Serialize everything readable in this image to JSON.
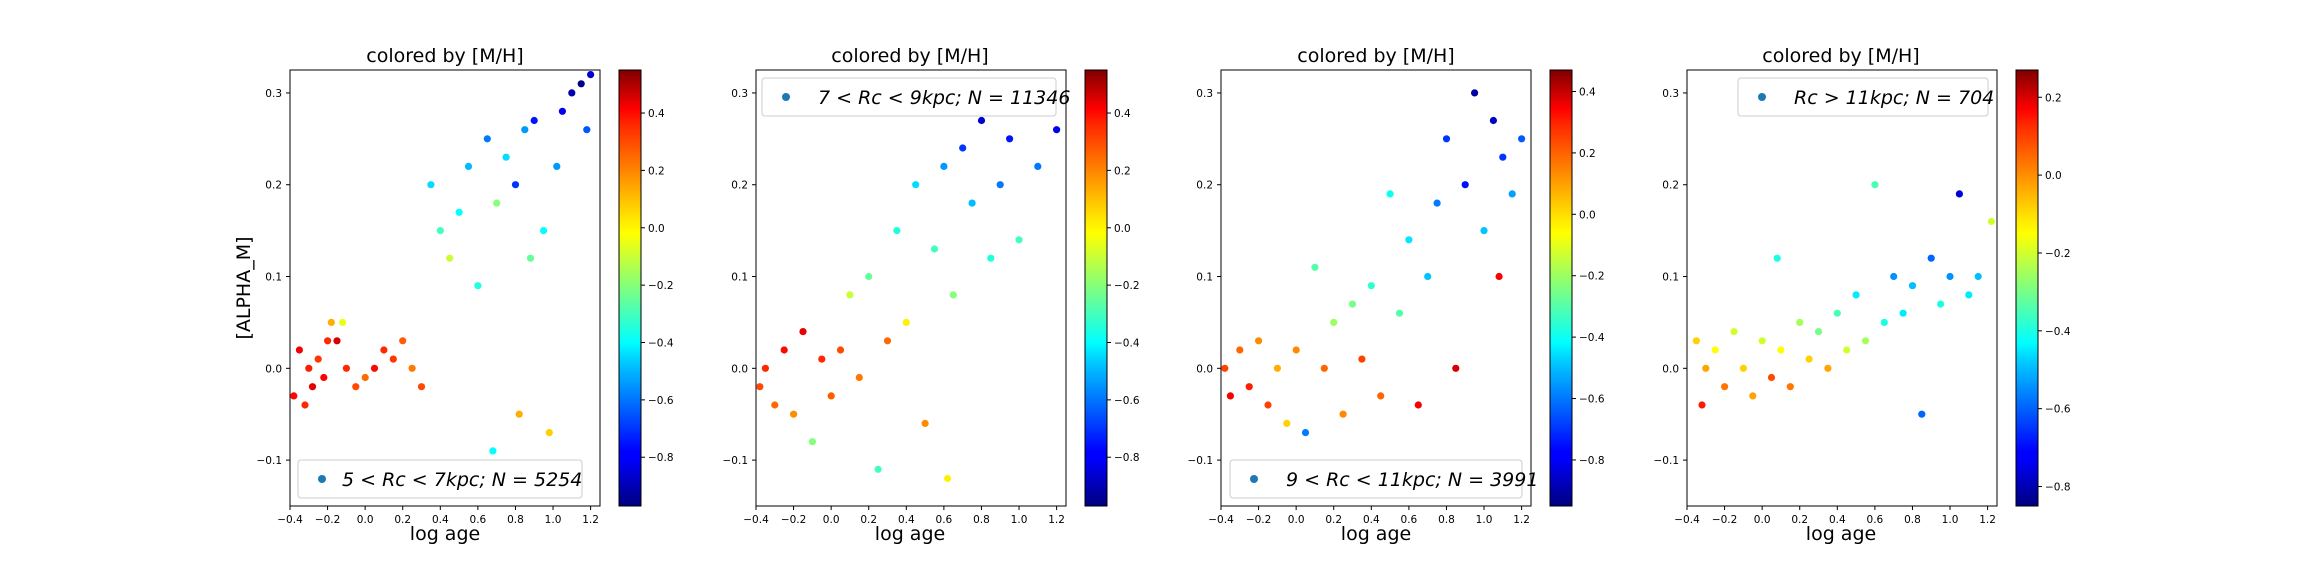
{
  "figure": {
    "ylabel": "[ALPHA_M]",
    "xlabel": "log age",
    "title": "colored by [M/H]"
  },
  "colors": {
    "legend_marker": "#1f77b4",
    "colormap": "jet"
  },
  "chart_data": [
    {
      "type": "scatter",
      "title": "colored by [M/H]",
      "xlabel": "log age",
      "ylabel": "[ALPHA_M]",
      "xlim": [
        -0.4,
        1.25
      ],
      "ylim": [
        -0.15,
        0.325
      ],
      "xticks": [
        -0.4,
        -0.2,
        0.0,
        0.2,
        0.4,
        0.6,
        0.8,
        1.0,
        1.2
      ],
      "xtick_labels": [
        "−0.4",
        "−0.2",
        "0.0",
        "0.2",
        "0.4",
        "0.6",
        "0.8",
        "1.0",
        "1.2"
      ],
      "yticks": [
        -0.1,
        0.0,
        0.1,
        0.2,
        0.3
      ],
      "ytick_labels": [
        "−0.1",
        "0.0",
        "0.1",
        "0.2",
        "0.3"
      ],
      "legend": {
        "label": "5 < Rc < 7kpc;  N = 5254",
        "position": "lower right"
      },
      "N": 5254,
      "colorbar": {
        "min": -0.97,
        "max": 0.55,
        "ticks": [
          -0.8,
          -0.6,
          -0.4,
          -0.2,
          0.0,
          0.2,
          0.4
        ],
        "tick_labels": [
          "−0.8",
          "−0.6",
          "−0.4",
          "−0.2",
          "0.0",
          "0.2",
          "0.4"
        ]
      },
      "points": [
        [
          -0.38,
          -0.03,
          0.35
        ],
        [
          -0.35,
          0.02,
          0.38
        ],
        [
          -0.32,
          -0.04,
          0.3
        ],
        [
          -0.3,
          0.0,
          0.32
        ],
        [
          -0.28,
          -0.02,
          0.4
        ],
        [
          -0.25,
          0.01,
          0.28
        ],
        [
          -0.22,
          -0.01,
          0.36
        ],
        [
          -0.2,
          0.03,
          0.3
        ],
        [
          -0.18,
          0.05,
          0.1
        ],
        [
          -0.15,
          0.03,
          0.42
        ],
        [
          -0.12,
          0.05,
          -0.05
        ],
        [
          -0.1,
          0.0,
          0.3
        ],
        [
          -0.05,
          -0.02,
          0.25
        ],
        [
          0.0,
          -0.01,
          0.2
        ],
        [
          0.05,
          0.0,
          0.35
        ],
        [
          0.1,
          0.02,
          0.3
        ],
        [
          0.15,
          0.01,
          0.28
        ],
        [
          0.2,
          0.03,
          0.22
        ],
        [
          0.25,
          0.0,
          0.18
        ],
        [
          0.3,
          -0.02,
          0.25
        ],
        [
          0.35,
          0.2,
          -0.45
        ],
        [
          0.4,
          0.15,
          -0.3
        ],
        [
          0.45,
          0.12,
          -0.1
        ],
        [
          0.5,
          0.17,
          -0.4
        ],
        [
          0.55,
          0.22,
          -0.5
        ],
        [
          0.6,
          0.09,
          -0.35
        ],
        [
          0.65,
          0.25,
          -0.6
        ],
        [
          0.68,
          -0.09,
          -0.4
        ],
        [
          0.7,
          0.18,
          -0.2
        ],
        [
          0.75,
          0.23,
          -0.45
        ],
        [
          0.8,
          0.2,
          -0.7
        ],
        [
          0.82,
          -0.05,
          0.1
        ],
        [
          0.85,
          0.26,
          -0.55
        ],
        [
          0.88,
          0.12,
          -0.25
        ],
        [
          0.9,
          0.27,
          -0.75
        ],
        [
          0.95,
          0.15,
          -0.4
        ],
        [
          0.98,
          -0.07,
          0.05
        ],
        [
          1.02,
          0.22,
          -0.55
        ],
        [
          1.05,
          0.28,
          -0.8
        ],
        [
          1.1,
          0.3,
          -0.9
        ],
        [
          1.15,
          0.31,
          -0.95
        ],
        [
          1.18,
          0.26,
          -0.65
        ],
        [
          1.2,
          0.32,
          -0.85
        ]
      ]
    },
    {
      "type": "scatter",
      "title": "colored by [M/H]",
      "xlabel": "log age",
      "ylabel": "",
      "xlim": [
        -0.4,
        1.25
      ],
      "ylim": [
        -0.15,
        0.325
      ],
      "xticks": [
        -0.4,
        -0.2,
        0.0,
        0.2,
        0.4,
        0.6,
        0.8,
        1.0,
        1.2
      ],
      "xtick_labels": [
        "−0.4",
        "−0.2",
        "0.0",
        "0.2",
        "0.4",
        "0.6",
        "0.8",
        "1.0",
        "1.2"
      ],
      "yticks": [
        -0.1,
        0.0,
        0.1,
        0.2,
        0.3
      ],
      "ytick_labels": [
        "−0.1",
        "0.0",
        "0.1",
        "0.2",
        "0.3"
      ],
      "legend": {
        "label": "7 < Rc < 9kpc;  N = 11346",
        "position": "upper left"
      },
      "N": 11346,
      "colorbar": {
        "min": -0.97,
        "max": 0.55,
        "ticks": [
          -0.8,
          -0.6,
          -0.4,
          -0.2,
          0.0,
          0.2,
          0.4
        ],
        "tick_labels": [
          "−0.8",
          "−0.6",
          "−0.4",
          "−0.2",
          "0.0",
          "0.2",
          "0.4"
        ]
      },
      "points": [
        [
          -0.38,
          -0.02,
          0.25
        ],
        [
          -0.35,
          0.0,
          0.3
        ],
        [
          -0.3,
          -0.04,
          0.2
        ],
        [
          -0.25,
          0.02,
          0.35
        ],
        [
          -0.2,
          -0.05,
          0.15
        ],
        [
          -0.15,
          0.04,
          0.4
        ],
        [
          -0.1,
          -0.08,
          -0.2
        ],
        [
          -0.05,
          0.01,
          0.3
        ],
        [
          0.0,
          -0.03,
          0.22
        ],
        [
          0.05,
          0.02,
          0.25
        ],
        [
          0.1,
          0.08,
          -0.1
        ],
        [
          0.15,
          -0.01,
          0.18
        ],
        [
          0.2,
          0.1,
          -0.25
        ],
        [
          0.25,
          -0.11,
          -0.3
        ],
        [
          0.3,
          0.03,
          0.2
        ],
        [
          0.35,
          0.15,
          -0.35
        ],
        [
          0.4,
          0.05,
          0.0
        ],
        [
          0.45,
          0.2,
          -0.45
        ],
        [
          0.5,
          -0.06,
          0.15
        ],
        [
          0.55,
          0.13,
          -0.3
        ],
        [
          0.6,
          0.22,
          -0.55
        ],
        [
          0.62,
          -0.12,
          0.0
        ],
        [
          0.65,
          0.08,
          -0.2
        ],
        [
          0.7,
          0.24,
          -0.7
        ],
        [
          0.75,
          0.18,
          -0.5
        ],
        [
          0.8,
          0.27,
          -0.85
        ],
        [
          0.85,
          0.12,
          -0.35
        ],
        [
          0.9,
          0.2,
          -0.6
        ],
        [
          0.95,
          0.25,
          -0.75
        ],
        [
          1.0,
          0.14,
          -0.3
        ],
        [
          1.05,
          0.28,
          -0.9
        ],
        [
          1.1,
          0.22,
          -0.6
        ],
        [
          1.15,
          0.3,
          -0.95
        ],
        [
          1.2,
          0.26,
          -0.8
        ]
      ]
    },
    {
      "type": "scatter",
      "title": "colored by [M/H]",
      "xlabel": "log age",
      "ylabel": "",
      "xlim": [
        -0.4,
        1.25
      ],
      "ylim": [
        -0.15,
        0.325
      ],
      "xticks": [
        -0.4,
        -0.2,
        0.0,
        0.2,
        0.4,
        0.6,
        0.8,
        1.0,
        1.2
      ],
      "xtick_labels": [
        "−0.4",
        "−0.2",
        "0.0",
        "0.2",
        "0.4",
        "0.6",
        "0.8",
        "1.0",
        "1.2"
      ],
      "yticks": [
        -0.1,
        0.0,
        0.1,
        0.2,
        0.3
      ],
      "ytick_labels": [
        "−0.1",
        "0.0",
        "0.1",
        "0.2",
        "0.3"
      ],
      "legend": {
        "label": "9 < Rc < 11kpc;  N = 3991",
        "position": "lower right"
      },
      "N": 3991,
      "colorbar": {
        "min": -0.95,
        "max": 0.47,
        "ticks": [
          -0.8,
          -0.6,
          -0.4,
          -0.2,
          0.0,
          0.2,
          0.4
        ],
        "tick_labels": [
          "−0.8",
          "−0.6",
          "−0.4",
          "−0.2",
          "0.0",
          "0.2",
          "0.4"
        ]
      },
      "points": [
        [
          -0.38,
          0.0,
          0.2
        ],
        [
          -0.35,
          -0.03,
          0.3
        ],
        [
          -0.3,
          0.02,
          0.15
        ],
        [
          -0.25,
          -0.02,
          0.25
        ],
        [
          -0.2,
          0.03,
          0.1
        ],
        [
          -0.15,
          -0.04,
          0.2
        ],
        [
          -0.1,
          0.0,
          0.05
        ],
        [
          -0.05,
          -0.06,
          0.0
        ],
        [
          0.0,
          0.02,
          0.1
        ],
        [
          0.05,
          -0.07,
          -0.6
        ],
        [
          0.1,
          0.11,
          -0.3
        ],
        [
          0.15,
          0.0,
          0.15
        ],
        [
          0.2,
          0.05,
          -0.2
        ],
        [
          0.25,
          -0.05,
          0.1
        ],
        [
          0.3,
          0.07,
          -0.25
        ],
        [
          0.35,
          0.01,
          0.2
        ],
        [
          0.4,
          0.09,
          -0.35
        ],
        [
          0.45,
          -0.03,
          0.15
        ],
        [
          0.5,
          0.19,
          -0.4
        ],
        [
          0.55,
          0.06,
          -0.3
        ],
        [
          0.6,
          0.14,
          -0.45
        ],
        [
          0.65,
          -0.04,
          0.3
        ],
        [
          0.7,
          0.1,
          -0.5
        ],
        [
          0.75,
          0.18,
          -0.6
        ],
        [
          0.8,
          0.25,
          -0.7
        ],
        [
          0.85,
          0.0,
          0.35
        ],
        [
          0.9,
          0.2,
          -0.75
        ],
        [
          0.95,
          0.3,
          -0.9
        ],
        [
          1.0,
          0.15,
          -0.5
        ],
        [
          1.05,
          0.27,
          -0.85
        ],
        [
          1.08,
          0.1,
          0.3
        ],
        [
          1.1,
          0.23,
          -0.7
        ],
        [
          1.15,
          0.19,
          -0.55
        ],
        [
          1.2,
          0.25,
          -0.65
        ]
      ]
    },
    {
      "type": "scatter",
      "title": "colored by [M/H]",
      "xlabel": "log age",
      "ylabel": "",
      "xlim": [
        -0.4,
        1.25
      ],
      "ylim": [
        -0.15,
        0.325
      ],
      "xticks": [
        -0.4,
        -0.2,
        0.0,
        0.2,
        0.4,
        0.6,
        0.8,
        1.0,
        1.2
      ],
      "xtick_labels": [
        "−0.4",
        "−0.2",
        "0.0",
        "0.2",
        "0.4",
        "0.6",
        "0.8",
        "1.0",
        "1.2"
      ],
      "yticks": [
        -0.1,
        0.0,
        0.1,
        0.2,
        0.3
      ],
      "ytick_labels": [
        "−0.1",
        "0.0",
        "0.1",
        "0.2",
        "0.3"
      ],
      "legend": {
        "label": "Rc > 11kpc;  N = 704",
        "position": "upper right"
      },
      "N": 704,
      "colorbar": {
        "min": -0.85,
        "max": 0.27,
        "ticks": [
          -0.8,
          -0.6,
          -0.4,
          -0.2,
          0.0,
          0.2
        ],
        "tick_labels": [
          "−0.8",
          "−0.6",
          "−0.4",
          "−0.2",
          "0.0",
          "0.2"
        ]
      },
      "points": [
        [
          -0.35,
          0.03,
          -0.1
        ],
        [
          -0.32,
          -0.04,
          0.1
        ],
        [
          -0.3,
          0.0,
          -0.05
        ],
        [
          -0.25,
          0.02,
          -0.15
        ],
        [
          -0.2,
          -0.02,
          0.0
        ],
        [
          -0.15,
          0.04,
          -0.2
        ],
        [
          -0.1,
          0.0,
          -0.1
        ],
        [
          -0.05,
          -0.03,
          -0.05
        ],
        [
          0.0,
          0.03,
          -0.2
        ],
        [
          0.05,
          -0.01,
          0.05
        ],
        [
          0.08,
          0.12,
          -0.4
        ],
        [
          0.1,
          0.02,
          -0.15
        ],
        [
          0.15,
          -0.02,
          0.0
        ],
        [
          0.2,
          0.05,
          -0.25
        ],
        [
          0.25,
          0.01,
          -0.1
        ],
        [
          0.3,
          0.04,
          -0.3
        ],
        [
          0.35,
          0.0,
          -0.05
        ],
        [
          0.4,
          0.06,
          -0.35
        ],
        [
          0.45,
          0.02,
          -0.2
        ],
        [
          0.5,
          0.08,
          -0.45
        ],
        [
          0.55,
          0.03,
          -0.25
        ],
        [
          0.6,
          0.2,
          -0.35
        ],
        [
          0.65,
          0.05,
          -0.4
        ],
        [
          0.7,
          0.1,
          -0.55
        ],
        [
          0.75,
          0.06,
          -0.45
        ],
        [
          0.8,
          0.09,
          -0.5
        ],
        [
          0.85,
          -0.05,
          -0.6
        ],
        [
          0.9,
          0.12,
          -0.6
        ],
        [
          0.95,
          0.07,
          -0.4
        ],
        [
          1.0,
          0.1,
          -0.55
        ],
        [
          1.05,
          0.19,
          -0.75
        ],
        [
          1.1,
          0.08,
          -0.45
        ],
        [
          1.15,
          0.1,
          -0.5
        ],
        [
          1.22,
          0.16,
          -0.2
        ]
      ]
    }
  ]
}
